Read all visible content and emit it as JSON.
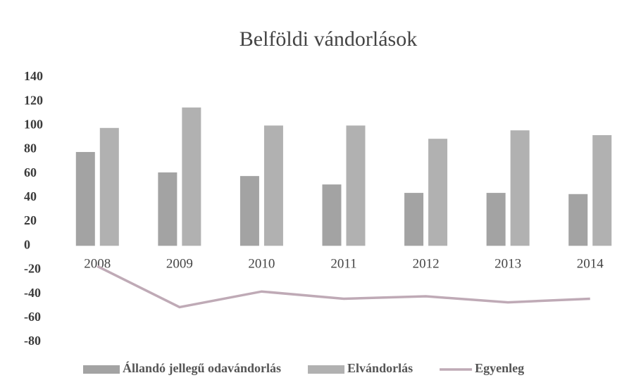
{
  "chart_data": {
    "type": "bar",
    "title": "Belföldi vándorlások",
    "categories": [
      "2008",
      "2009",
      "2010",
      "2011",
      "2012",
      "2013",
      "2014"
    ],
    "series": [
      {
        "name": "Állandó jellegű odavándorlás",
        "color": "#a3a3a3",
        "values": [
          78,
          61,
          58,
          51,
          44,
          44,
          43
        ]
      },
      {
        "name": "Elvándorlás",
        "color": "#b1b1b1",
        "values": [
          98,
          115,
          100,
          100,
          89,
          96,
          92
        ]
      },
      {
        "name": "Egyenleg",
        "color": "#bfaab6",
        "type": "line",
        "values": [
          -17,
          -51,
          -38,
          -44,
          -42,
          -47,
          -44
        ]
      }
    ],
    "ylim": [
      -80,
      140
    ],
    "yticks": [
      -80,
      -60,
      -40,
      -20,
      0,
      20,
      40,
      60,
      80,
      100,
      120,
      140
    ],
    "grid": false
  }
}
